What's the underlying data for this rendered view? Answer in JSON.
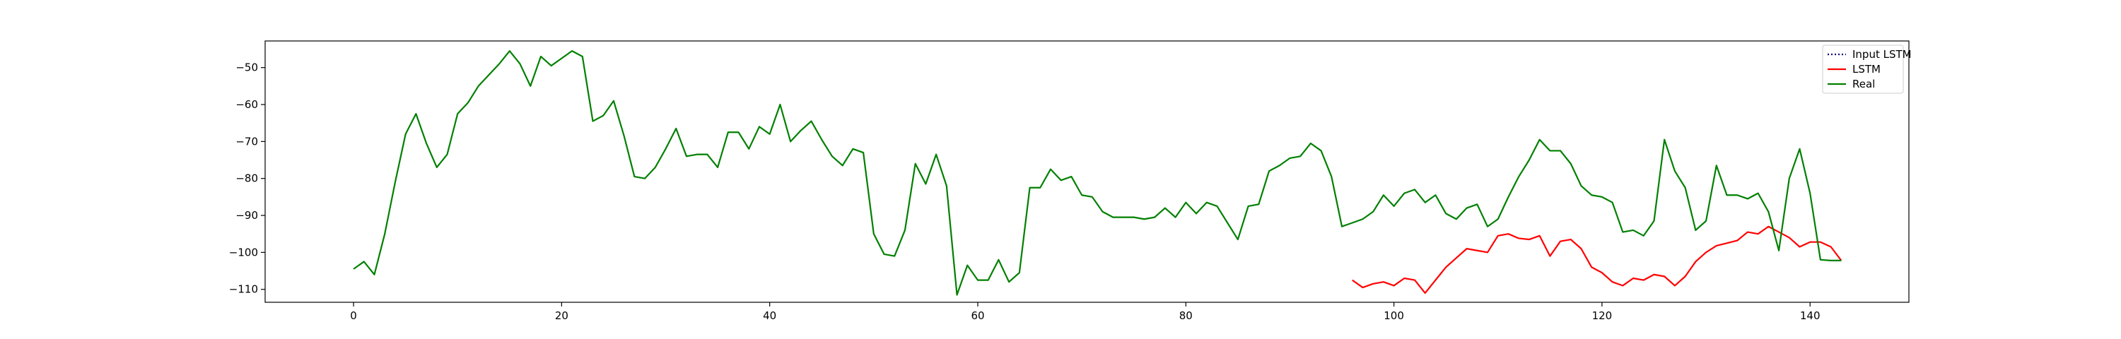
{
  "chart_data": {
    "type": "line",
    "title": "",
    "xlabel": "",
    "ylabel": "",
    "xlim": [
      -8.5,
      149.5
    ],
    "ylim": [
      -113.5,
      -42.8
    ],
    "xticks": [
      0,
      20,
      40,
      60,
      80,
      100,
      120,
      140
    ],
    "yticks": [
      -110,
      -100,
      -90,
      -80,
      -70,
      -60,
      -50
    ],
    "grid": false,
    "legend_position": "top-right",
    "series": [
      {
        "name": "Input LSTM",
        "color": "#000080",
        "style": "dotted",
        "x": [],
        "y": []
      },
      {
        "name": "LSTM",
        "color": "#ff0000",
        "style": "solid",
        "x": [
          96,
          97,
          98,
          99,
          100,
          101,
          102,
          103,
          104,
          105,
          106,
          107,
          108,
          109,
          110,
          111,
          112,
          113,
          114,
          115,
          116,
          117,
          118,
          119,
          120,
          121,
          122,
          123,
          124,
          125,
          126,
          127,
          128,
          129,
          130,
          131,
          132,
          133,
          134,
          135,
          136,
          137,
          138,
          139,
          140,
          141,
          142,
          143
        ],
        "y": [
          -107.5,
          -109.5,
          -108.5,
          -108,
          -109,
          -107,
          -107.5,
          -111,
          -107.5,
          -104,
          -101.5,
          -99,
          -99.5,
          -100,
          -95.5,
          -95,
          -96.2,
          -96.5,
          -95.5,
          -101,
          -97,
          -96.5,
          -99,
          -104,
          -105.5,
          -108,
          -109,
          -107,
          -107.5,
          -106,
          -106.5,
          -109,
          -106.5,
          -102.5,
          -100,
          -98.2,
          -97.5,
          -96.8,
          -94.5,
          -95,
          -93,
          -94.5,
          -96,
          -98.5,
          -97.2,
          -97.2,
          -98.5,
          -102.2
        ]
      },
      {
        "name": "Real",
        "color": "#008000",
        "style": "solid",
        "x": [
          0,
          1,
          2,
          3,
          4,
          5,
          6,
          7,
          8,
          9,
          10,
          11,
          12,
          13,
          14,
          15,
          16,
          17,
          18,
          19,
          20,
          21,
          22,
          23,
          24,
          25,
          26,
          27,
          28,
          29,
          30,
          31,
          32,
          33,
          34,
          35,
          36,
          37,
          38,
          39,
          40,
          41,
          42,
          43,
          44,
          45,
          46,
          47,
          48,
          49,
          50,
          51,
          52,
          53,
          54,
          55,
          56,
          57,
          58,
          59,
          60,
          61,
          62,
          63,
          64,
          65,
          66,
          67,
          68,
          69,
          70,
          71,
          72,
          73,
          74,
          75,
          76,
          77,
          78,
          79,
          80,
          81,
          82,
          83,
          84,
          85,
          86,
          87,
          88,
          89,
          90,
          91,
          92,
          93,
          94,
          95,
          96,
          97,
          98,
          99,
          100,
          101,
          102,
          103,
          104,
          105,
          106,
          107,
          108,
          109,
          110,
          111,
          112,
          113,
          114,
          115,
          116,
          117,
          118,
          119,
          120,
          121,
          122,
          123,
          124,
          125,
          126,
          127,
          128,
          129,
          130,
          131,
          132,
          133,
          134,
          135,
          136,
          137,
          138,
          139,
          140,
          141,
          142,
          143
        ],
        "y": [
          -104.5,
          -102.5,
          -106,
          -95,
          -81,
          -68,
          -62.5,
          -70.5,
          -77,
          -73.5,
          -62.5,
          -59.5,
          -55,
          -52,
          -49,
          -45.5,
          -49,
          -55,
          -47,
          -49.5,
          -47.5,
          -45.5,
          -47,
          -64.5,
          -63,
          -59,
          -68.5,
          -79.5,
          -80,
          -77,
          -72,
          -66.5,
          -74,
          -73.5,
          -73.5,
          -77,
          -67.5,
          -67.5,
          -72,
          -66,
          -68,
          -60,
          -70,
          -67,
          -64.5,
          -69.5,
          -74,
          -76.5,
          -72,
          -73,
          -95,
          -100.5,
          -101,
          -94,
          -76,
          -81.5,
          -73.5,
          -82,
          -111.5,
          -103.5,
          -107.5,
          -107.5,
          -102,
          -108,
          -105.5,
          -82.5,
          -82.5,
          -77.5,
          -80.5,
          -79.5,
          -84.5,
          -85,
          -89,
          -90.5,
          -90.5,
          -90.5,
          -91,
          -90.5,
          -88,
          -90.5,
          -86.5,
          -89.5,
          -86.5,
          -87.5,
          -92,
          -96.5,
          -87.5,
          -87,
          -78,
          -76.5,
          -74.5,
          -74,
          -70.5,
          -72.5,
          -79.5,
          -93,
          -92,
          -91,
          -89,
          -84.5,
          -87.5,
          -84,
          -83,
          -86.5,
          -84.5,
          -89.5,
          -91,
          -88,
          -87,
          -93,
          -91,
          -85,
          -79.5,
          -75,
          -69.5,
          -72.5,
          -72.5,
          -76,
          -82,
          -84.5,
          -85,
          -86.5,
          -94.5,
          -94,
          -95.5,
          -91.5,
          -69.5,
          -78,
          -82.5,
          -94,
          -91.5,
          -76.5,
          -84.5,
          -84.5,
          -85.5,
          -84,
          -89,
          -99.5,
          -80,
          -72,
          -84,
          -102,
          -102.2,
          -102.2
        ]
      }
    ]
  }
}
